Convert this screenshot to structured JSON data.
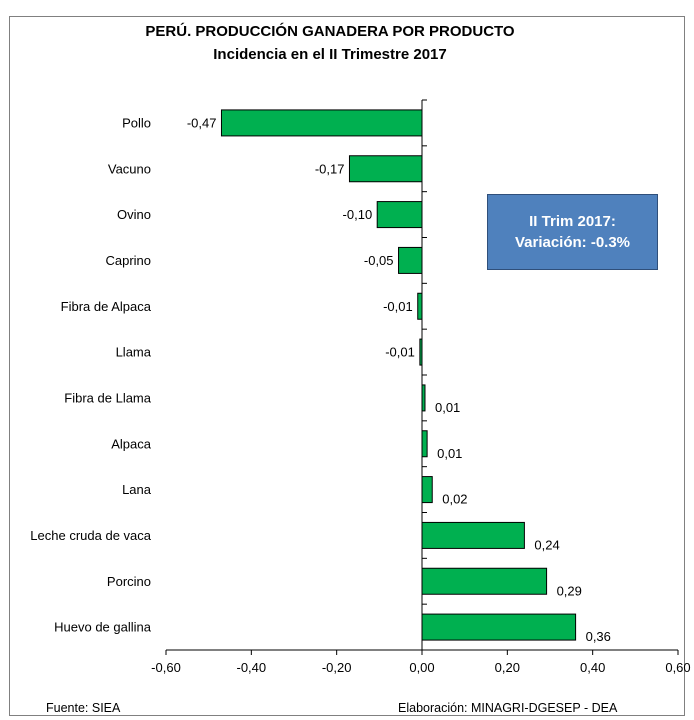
{
  "chart_data": {
    "type": "bar",
    "orientation": "horizontal",
    "title": "PERÚ. PRODUCCIÓN GANADERA POR PRODUCTO",
    "subtitle": "Incidencia en el II Trimestre 2017",
    "categories": [
      "Pollo",
      "Vacuno",
      "Ovino",
      "Caprino",
      "Fibra de Alpaca",
      "Llama",
      "Fibra de Llama",
      "Alpaca",
      "Lana",
      "Leche cruda de vaca",
      "Porcino",
      "Huevo de gallina"
    ],
    "values": [
      -0.47,
      -0.17,
      -0.105,
      -0.055,
      -0.01,
      -0.005,
      0.007,
      0.012,
      0.024,
      0.24,
      0.292,
      0.36
    ],
    "data_labels": [
      "-0,47",
      "-0,17",
      "-0,10",
      "-0,05",
      "-0,01",
      "-0,01",
      "0,01",
      "0,01",
      "0,02",
      "0,24",
      "0,29",
      "0,36"
    ],
    "xlim": [
      -0.6,
      0.6
    ],
    "xticks": [
      "-0,60",
      "-0,40",
      "-0,20",
      "0,00",
      "0,20",
      "0,40",
      "0,60"
    ],
    "xtick_values": [
      -0.6,
      -0.4,
      -0.2,
      0,
      0.2,
      0.4,
      0.6
    ],
    "bar_color": "#00b050",
    "grid": false,
    "legend": "none"
  },
  "callout": {
    "line1": "II Trim 2017:",
    "line2": "Variación: -0.3%",
    "color": "#4f81bd"
  },
  "footer": {
    "source": "Fuente: SIEA",
    "credit": "Elaboración: MINAGRI-DGESEP - DEA"
  }
}
